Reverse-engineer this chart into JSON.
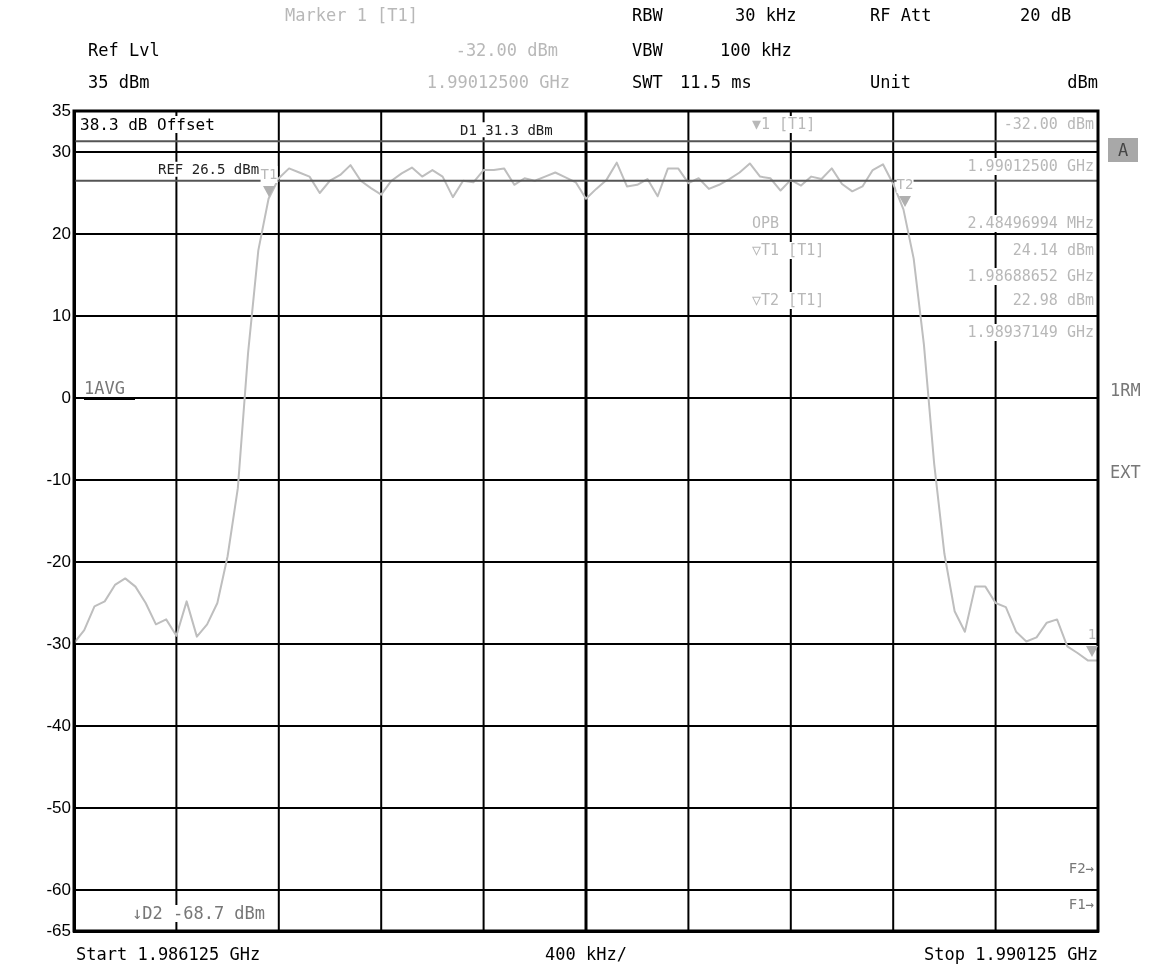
{
  "chart_data": {
    "type": "line",
    "xlabel": "400 kHz/",
    "categories": [
      null,
      null,
      null,
      null,
      null,
      null,
      null,
      null,
      null,
      null,
      null,
      null,
      null,
      null,
      null,
      null,
      null,
      null,
      null,
      null,
      null,
      null,
      null,
      null,
      null,
      null,
      null,
      null,
      null,
      null,
      null,
      null,
      null,
      null,
      null,
      null,
      null,
      null,
      null,
      null,
      null,
      null,
      null,
      null,
      null,
      null,
      null,
      null,
      null,
      null,
      null,
      null,
      null,
      null,
      null,
      null,
      null,
      null,
      null,
      null,
      null,
      null,
      null,
      null,
      null,
      null,
      null,
      null,
      null,
      null,
      null,
      null,
      null,
      null,
      null,
      null,
      null,
      null,
      null,
      null,
      null,
      null,
      null,
      null,
      null,
      null,
      null,
      null,
      null,
      null,
      null,
      null,
      null,
      null,
      null,
      null,
      null,
      null,
      null,
      null,
      null
    ],
    "ylim": [
      -65,
      35
    ],
    "yticks": [
      35,
      30,
      20,
      10,
      0,
      -10,
      -20,
      -30,
      -40,
      -50,
      -60,
      -65
    ],
    "tick_labels": "y",
    "grid": true,
    "legend": false,
    "marker": "none",
    "line_style": "solid",
    "series": [
      {
        "color": "#bebebe",
        "values": [
          -29.9,
          -28.3,
          -25.4,
          -24.8,
          -22.8,
          -22.0,
          -23.0,
          -25.0,
          -27.6,
          -27.0,
          -29.0,
          -24.8,
          -29.1,
          -27.6,
          -25.0,
          -19.3,
          -11.0,
          5.5,
          18.0,
          24.3,
          26.8,
          28.0,
          27.5,
          27.0,
          25.0,
          26.5,
          27.2,
          28.4,
          26.5,
          25.6,
          24.8,
          26.5,
          27.4,
          28.1,
          27.0,
          27.8,
          27.0,
          24.5,
          26.5,
          26.3,
          27.8,
          27.8,
          28.0,
          26.0,
          26.8,
          26.5,
          27.0,
          27.5,
          26.9,
          26.3,
          24.3,
          25.5,
          26.6,
          28.7,
          25.8,
          26.0,
          26.7,
          24.6,
          28.0,
          28.0,
          26.2,
          26.8,
          25.5,
          26.0,
          26.7,
          27.5,
          28.6,
          27.0,
          26.8,
          25.3,
          26.6,
          25.9,
          27.0,
          26.7,
          28.0,
          26.1,
          25.2,
          25.8,
          27.8,
          28.5,
          26.1,
          23.0,
          17.0,
          6.5,
          -8.0,
          -19.0,
          -26.0,
          -28.5,
          -23.0,
          -23.0,
          -25.0,
          -25.5,
          -28.5,
          -29.7,
          -29.2,
          -27.4,
          -27.0,
          -30.3,
          -31.1,
          -32.0,
          -32.0
        ]
      }
    ],
    "ref_lines": [
      {
        "axis": "y",
        "value": 31.3,
        "label": "D1 31.3 dBm",
        "color": "#555555"
      },
      {
        "axis": "y",
        "value": 26.5,
        "label": "REF 26.5 dBm",
        "color": "#555555"
      }
    ],
    "annotations": [
      "Marker 1 [T1]",
      "-32.00 dBm",
      "1.99012500 GHz",
      "Ref Lvl",
      "35 dBm",
      "RBW",
      "30 kHz",
      "VBW",
      "100 kHz",
      "SWT",
      "11.5 ms",
      "RF Att",
      "20 dB",
      "Unit",
      "dBm",
      "▼1 [T1]",
      "-32.00 dBm",
      "1.99012500 GHz",
      "OPB",
      "2.48496994 MHz",
      "▽T1 [T1]",
      "24.14 dBm",
      "1.98688652 GHz",
      "▽T2 [T1]",
      "22.98 dBm",
      "1.98937149 GHz",
      "38.3 dB Offset",
      "1AVG",
      "A",
      "1RM",
      "EXT",
      "F2→",
      "F1→",
      "↓D2 -68.7 dBm",
      "Start 1.986125 GHz",
      "Stop 1.990125 GHz",
      "T1",
      "T2",
      "1"
    ]
  }
}
